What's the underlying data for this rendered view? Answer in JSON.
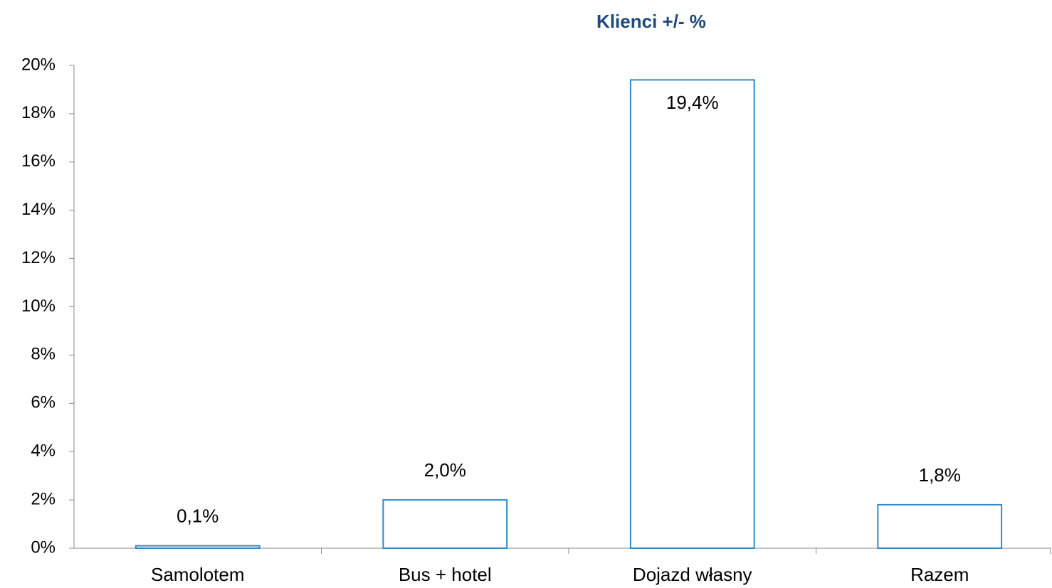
{
  "chart_data": {
    "type": "bar",
    "title": "Klienci +/- %",
    "categories": [
      "Samolotem",
      "Bus + hotel",
      "Dojazd własny",
      "Razem"
    ],
    "values": [
      0.1,
      2.0,
      19.4,
      1.8
    ],
    "value_labels": [
      "0,1%",
      "2,0%",
      "19,4%",
      "1,8%"
    ],
    "color": "#2e8bc9",
    "ylim": [
      0,
      20
    ],
    "yticks": [
      {
        "value": 0,
        "label": "0%"
      },
      {
        "value": 2,
        "label": "2%"
      },
      {
        "value": 4,
        "label": "4%"
      },
      {
        "value": 6,
        "label": "6%"
      },
      {
        "value": 8,
        "label": "8%"
      },
      {
        "value": 10,
        "label": "10%"
      },
      {
        "value": 12,
        "label": "12%"
      },
      {
        "value": 14,
        "label": "14%"
      },
      {
        "value": 16,
        "label": "16%"
      },
      {
        "value": 18,
        "label": "18%"
      },
      {
        "value": 20,
        "label": "20%"
      }
    ],
    "grid": false
  }
}
